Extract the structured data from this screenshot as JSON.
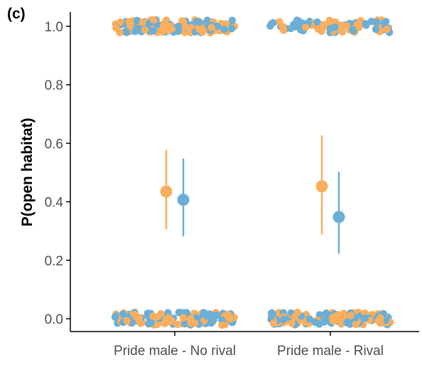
{
  "panel_label": "(c)",
  "colors": {
    "orange": "#F9AF5F",
    "blue": "#6BAED6",
    "axis": "#000000",
    "tick_text": "#4d4d4d"
  },
  "chart_data": {
    "type": "scatter",
    "title": "",
    "xlabel": "",
    "ylabel": "P(open habitat)",
    "ylim": [
      -0.03,
      1.04
    ],
    "yticks": [
      0.0,
      0.2,
      0.4,
      0.6,
      0.8,
      1.0
    ],
    "ytick_labels": [
      "0.0",
      "0.2",
      "0.4",
      "0.6",
      "0.8",
      "1.0"
    ],
    "categories": [
      "Pride male - No rival",
      "Pride male - Rival"
    ],
    "grid": false,
    "legend": "none",
    "series": [
      {
        "color": "#F9AF5F",
        "estimates": [
          {
            "category": "Pride male - No rival",
            "mean": 0.435,
            "lower": 0.305,
            "upper": 0.578
          },
          {
            "category": "Pride male - Rival",
            "mean": 0.453,
            "lower": 0.288,
            "upper": 0.627
          }
        ]
      },
      {
        "color": "#6BAED6",
        "estimates": [
          {
            "category": "Pride male - No rival",
            "mean": 0.407,
            "lower": 0.282,
            "upper": 0.548
          },
          {
            "category": "Pride male - Rival",
            "mean": 0.348,
            "lower": 0.222,
            "upper": 0.503
          }
        ]
      }
    ],
    "raw_observations": [
      {
        "category": "Pride male - No rival",
        "y": 1,
        "approx_count": 160
      },
      {
        "category": "Pride male - No rival",
        "y": 0,
        "approx_count": 120
      },
      {
        "category": "Pride male - Rival",
        "y": 1,
        "approx_count": 90
      },
      {
        "category": "Pride male - Rival",
        "y": 0,
        "approx_count": 150
      }
    ]
  }
}
